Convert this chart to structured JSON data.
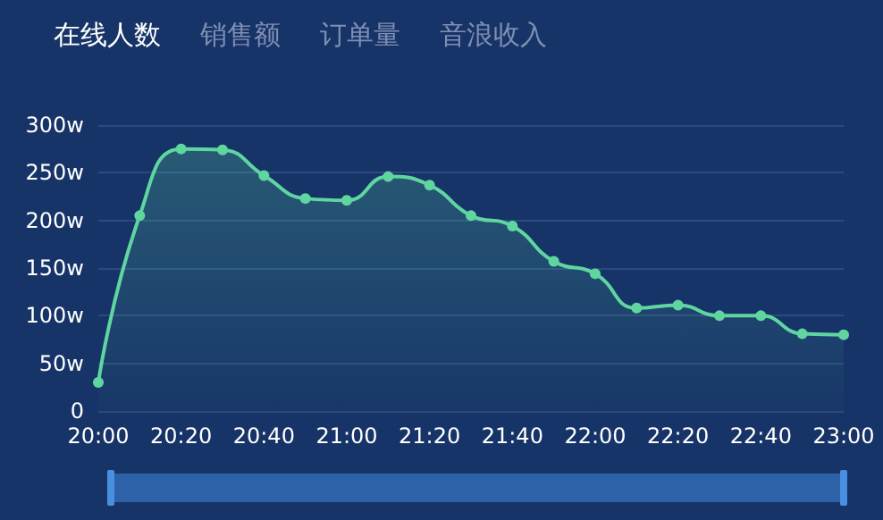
{
  "chart_data": {
    "type": "area",
    "title": "在线人数",
    "annotations": [
      "销售额",
      "订单量",
      "音浪收入"
    ],
    "categories": [
      "20:00",
      null,
      "20:20",
      null,
      "20:40",
      null,
      "21:00",
      null,
      "21:20",
      null,
      "21:40",
      null,
      "22:00",
      null,
      "22:20",
      null,
      "22:40",
      null,
      "23:00"
    ],
    "series": [
      {
        "color": "#5fd6a0",
        "values": [
          30,
          205,
          275,
          274,
          247,
          223,
          221,
          246,
          237,
          205,
          194,
          157,
          144,
          108,
          111,
          100,
          100,
          81,
          80
        ]
      }
    ],
    "ylim": [
      0,
      300
    ],
    "yticks": [
      0,
      {
        "value": 50,
        "label": "50w"
      },
      {
        "value": 100,
        "label": "100w"
      },
      {
        "value": 150,
        "label": "150w"
      },
      {
        "value": 200,
        "label": "200w"
      },
      {
        "value": 250,
        "label": "250w"
      },
      {
        "value": 300,
        "label": "300w"
      }
    ],
    "grid": "y",
    "marker": "circle",
    "line_style": "solid"
  }
}
